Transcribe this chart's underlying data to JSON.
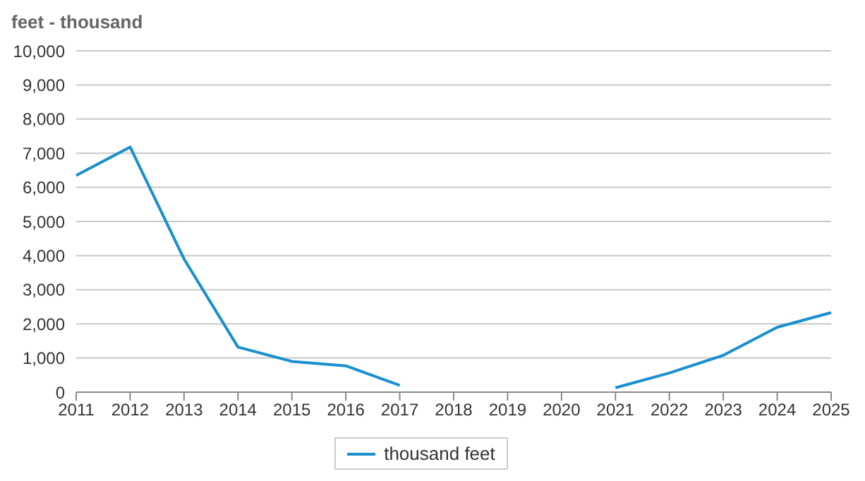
{
  "chart_data": {
    "type": "line",
    "ylabel": "feet - thousand",
    "categories": [
      "2011",
      "2012",
      "2013",
      "2014",
      "2015",
      "2016",
      "2017",
      "2018",
      "2019",
      "2020",
      "2021",
      "2022",
      "2023",
      "2024",
      "2025"
    ],
    "series": [
      {
        "name": "thousand feet",
        "color": "#1a8fce",
        "values": [
          6350,
          7180,
          3900,
          1320,
          900,
          770,
          200,
          null,
          null,
          null,
          130,
          560,
          1080,
          1900,
          2330
        ]
      }
    ],
    "ylim": [
      0,
      10000
    ],
    "yticks": [
      {
        "value": 0,
        "label": "0"
      },
      {
        "value": 1000,
        "label": "1,000"
      },
      {
        "value": 2000,
        "label": "2,000"
      },
      {
        "value": 3000,
        "label": "3,000"
      },
      {
        "value": 4000,
        "label": "4,000"
      },
      {
        "value": 5000,
        "label": "5,000"
      },
      {
        "value": 6000,
        "label": "6,000"
      },
      {
        "value": 7000,
        "label": "7,000"
      },
      {
        "value": 8000,
        "label": "8,000"
      },
      {
        "value": 9000,
        "label": "9,000"
      },
      {
        "value": 10000,
        "label": "10,000"
      }
    ],
    "grid": "y",
    "legend": "bottom",
    "marker": "none",
    "line_style": "solid"
  }
}
